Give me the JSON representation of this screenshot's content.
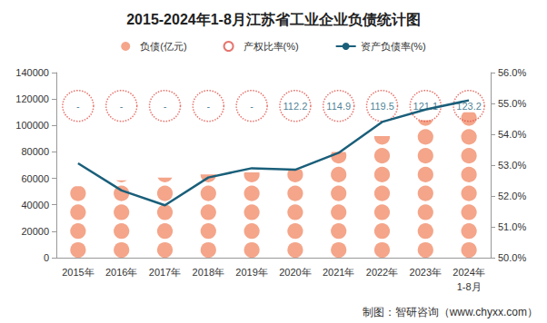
{
  "chart_data": {
    "type": "bar",
    "title": "2015-2024年1-8月江苏省工业企业负债统计图",
    "categories": [
      "2015年",
      "2016年",
      "2017年",
      "2018年",
      "2019年",
      "2020年",
      "2021年",
      "2022年",
      "2023年",
      "2024年\n1-8月"
    ],
    "series": [
      {
        "name": "负债(亿元)",
        "type": "bar",
        "marker": "circle",
        "color": "#f4a58a",
        "values": [
          54000,
          58500,
          60500,
          63000,
          64500,
          66500,
          80000,
          92000,
          104000,
          110000
        ]
      },
      {
        "name": "产权比率(%)",
        "type": "scatter",
        "marker": "circle",
        "line_style": "dotted",
        "color": "#e0524a",
        "values": [
          null,
          null,
          null,
          null,
          null,
          112.2,
          114.9,
          119.5,
          121.1,
          123.2
        ],
        "value_labels": [
          "-",
          "-",
          "-",
          "-",
          "-",
          "112.2",
          "114.9",
          "119.5",
          "121.1",
          "123.2"
        ]
      },
      {
        "name": "资产负债率(%)",
        "type": "line",
        "axis": "y2",
        "color": "#1a5f7a",
        "values": [
          53.06,
          52.18,
          51.7,
          52.6,
          52.9,
          52.85,
          53.4,
          54.4,
          54.8,
          55.1
        ]
      }
    ],
    "ylim": [
      0,
      140000
    ],
    "yticks": [
      0,
      20000,
      40000,
      60000,
      80000,
      100000,
      120000,
      140000
    ],
    "y2lim": [
      50,
      56
    ],
    "y2ticks": [
      {
        "value": 50,
        "label": "50.0%"
      },
      {
        "value": 51,
        "label": "51.0%"
      },
      {
        "value": 52,
        "label": "52.0%"
      },
      {
        "value": 53,
        "label": "53.0%"
      },
      {
        "value": 54,
        "label": "54.0%"
      },
      {
        "value": 55,
        "label": "55.0%"
      },
      {
        "value": 56,
        "label": "56.0%"
      }
    ],
    "legend": "top",
    "grid": false,
    "annotations": [
      "制图：智研咨询（www.chyxx.com）"
    ]
  }
}
